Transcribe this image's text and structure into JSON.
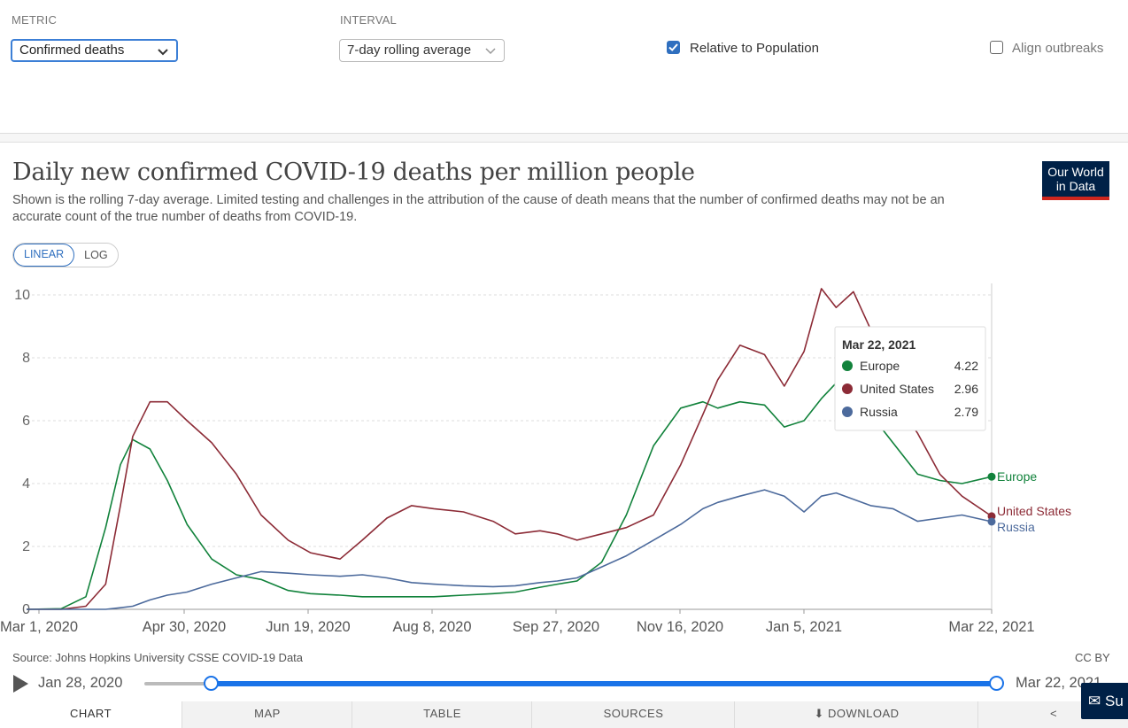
{
  "controls": {
    "metric_label": "METRIC",
    "metric_value": "Confirmed deaths",
    "interval_label": "INTERVAL",
    "interval_value": "7-day rolling average",
    "relative_label": "Relative to Population",
    "relative_checked": true,
    "align_label": "Align outbreaks",
    "align_checked": false
  },
  "header": {
    "title": "Daily new confirmed COVID-19 deaths per million people",
    "subtitle": "Shown is the rolling 7-day average. Limited testing and challenges in the attribution of the cause of death means that the number of confirmed deaths may not be an accurate count of the true number of deaths from COVID-19.",
    "logo_line1": "Our World",
    "logo_line2": "in Data",
    "scale_linear": "LINEAR",
    "scale_log": "LOG"
  },
  "tooltip": {
    "date": "Mar 22, 2021",
    "rows": [
      {
        "name": "Europe",
        "value": "4.22"
      },
      {
        "name": "United States",
        "value": "2.96"
      },
      {
        "name": "Russia",
        "value": "2.79"
      }
    ]
  },
  "footer": {
    "source": "Source: Johns Hopkins University CSSE COVID-19 Data",
    "license": "CC BY",
    "time_start": "Jan 28, 2020",
    "time_end": "Mar 22, 2021",
    "tabs": [
      "CHART",
      "MAP",
      "TABLE",
      "SOURCES",
      "DOWNLOAD"
    ],
    "feedback": "Su"
  },
  "colors": {
    "europe": "#11823b",
    "united_states": "#8c2b36",
    "russia": "#4c6a9c",
    "accent": "#2f6fbf"
  },
  "chart_data": {
    "type": "line",
    "title": "Daily new confirmed COVID-19 deaths per million people",
    "ylim": [
      0,
      10.2
    ],
    "yticks": [
      0,
      2,
      4,
      6,
      8,
      10
    ],
    "xticks": [
      "Mar 1, 2020",
      "Apr 30, 2020",
      "Jun 19, 2020",
      "Aug 8, 2020",
      "Sep 27, 2020",
      "Nov 16, 2020",
      "Jan 5, 2021",
      "Mar 22, 2021"
    ],
    "x_dates": [
      "2020-02-25",
      "2020-03-10",
      "2020-03-20",
      "2020-03-28",
      "2020-04-03",
      "2020-04-08",
      "2020-04-15",
      "2020-04-22",
      "2020-04-30",
      "2020-05-10",
      "2020-05-20",
      "2020-05-30",
      "2020-06-10",
      "2020-06-19",
      "2020-07-01",
      "2020-07-10",
      "2020-07-20",
      "2020-07-30",
      "2020-08-08",
      "2020-08-20",
      "2020-09-01",
      "2020-09-10",
      "2020-09-20",
      "2020-09-27",
      "2020-10-05",
      "2020-10-15",
      "2020-10-25",
      "2020-11-05",
      "2020-11-16",
      "2020-11-25",
      "2020-12-01",
      "2020-12-10",
      "2020-12-20",
      "2020-12-28",
      "2021-01-05",
      "2021-01-12",
      "2021-01-18",
      "2021-01-25",
      "2021-02-01",
      "2021-02-10",
      "2021-02-20",
      "2021-03-01",
      "2021-03-10",
      "2021-03-22"
    ],
    "series": [
      {
        "name": "Europe",
        "values": [
          0,
          0.02,
          0.4,
          2.6,
          4.6,
          5.4,
          5.1,
          4.1,
          2.7,
          1.6,
          1.1,
          0.95,
          0.6,
          0.5,
          0.45,
          0.4,
          0.4,
          0.4,
          0.4,
          0.45,
          0.5,
          0.55,
          0.7,
          0.8,
          0.9,
          1.5,
          3.0,
          5.2,
          6.4,
          6.6,
          6.4,
          6.6,
          6.5,
          5.8,
          6.0,
          6.7,
          7.2,
          7.0,
          6.2,
          5.3,
          4.3,
          4.1,
          4.0,
          4.22
        ]
      },
      {
        "name": "United States",
        "values": [
          0,
          0,
          0.1,
          0.8,
          3.3,
          5.5,
          6.6,
          6.6,
          6.0,
          5.3,
          4.3,
          3.0,
          2.2,
          1.8,
          1.6,
          2.2,
          2.9,
          3.3,
          3.2,
          3.1,
          2.8,
          2.4,
          2.5,
          2.4,
          2.2,
          2.4,
          2.6,
          3.0,
          4.6,
          6.2,
          7.3,
          8.4,
          8.1,
          7.1,
          8.2,
          10.2,
          9.6,
          10.1,
          8.9,
          6.7,
          5.6,
          4.3,
          3.6,
          2.96
        ]
      },
      {
        "name": "Russia",
        "values": [
          0,
          0,
          0,
          0,
          0.05,
          0.1,
          0.3,
          0.45,
          0.55,
          0.8,
          1.0,
          1.2,
          1.15,
          1.1,
          1.05,
          1.1,
          1.0,
          0.85,
          0.8,
          0.75,
          0.72,
          0.75,
          0.85,
          0.9,
          1.0,
          1.35,
          1.7,
          2.2,
          2.7,
          3.2,
          3.4,
          3.6,
          3.8,
          3.6,
          3.1,
          3.6,
          3.7,
          3.5,
          3.3,
          3.2,
          2.8,
          2.9,
          3.0,
          2.79
        ]
      }
    ]
  }
}
